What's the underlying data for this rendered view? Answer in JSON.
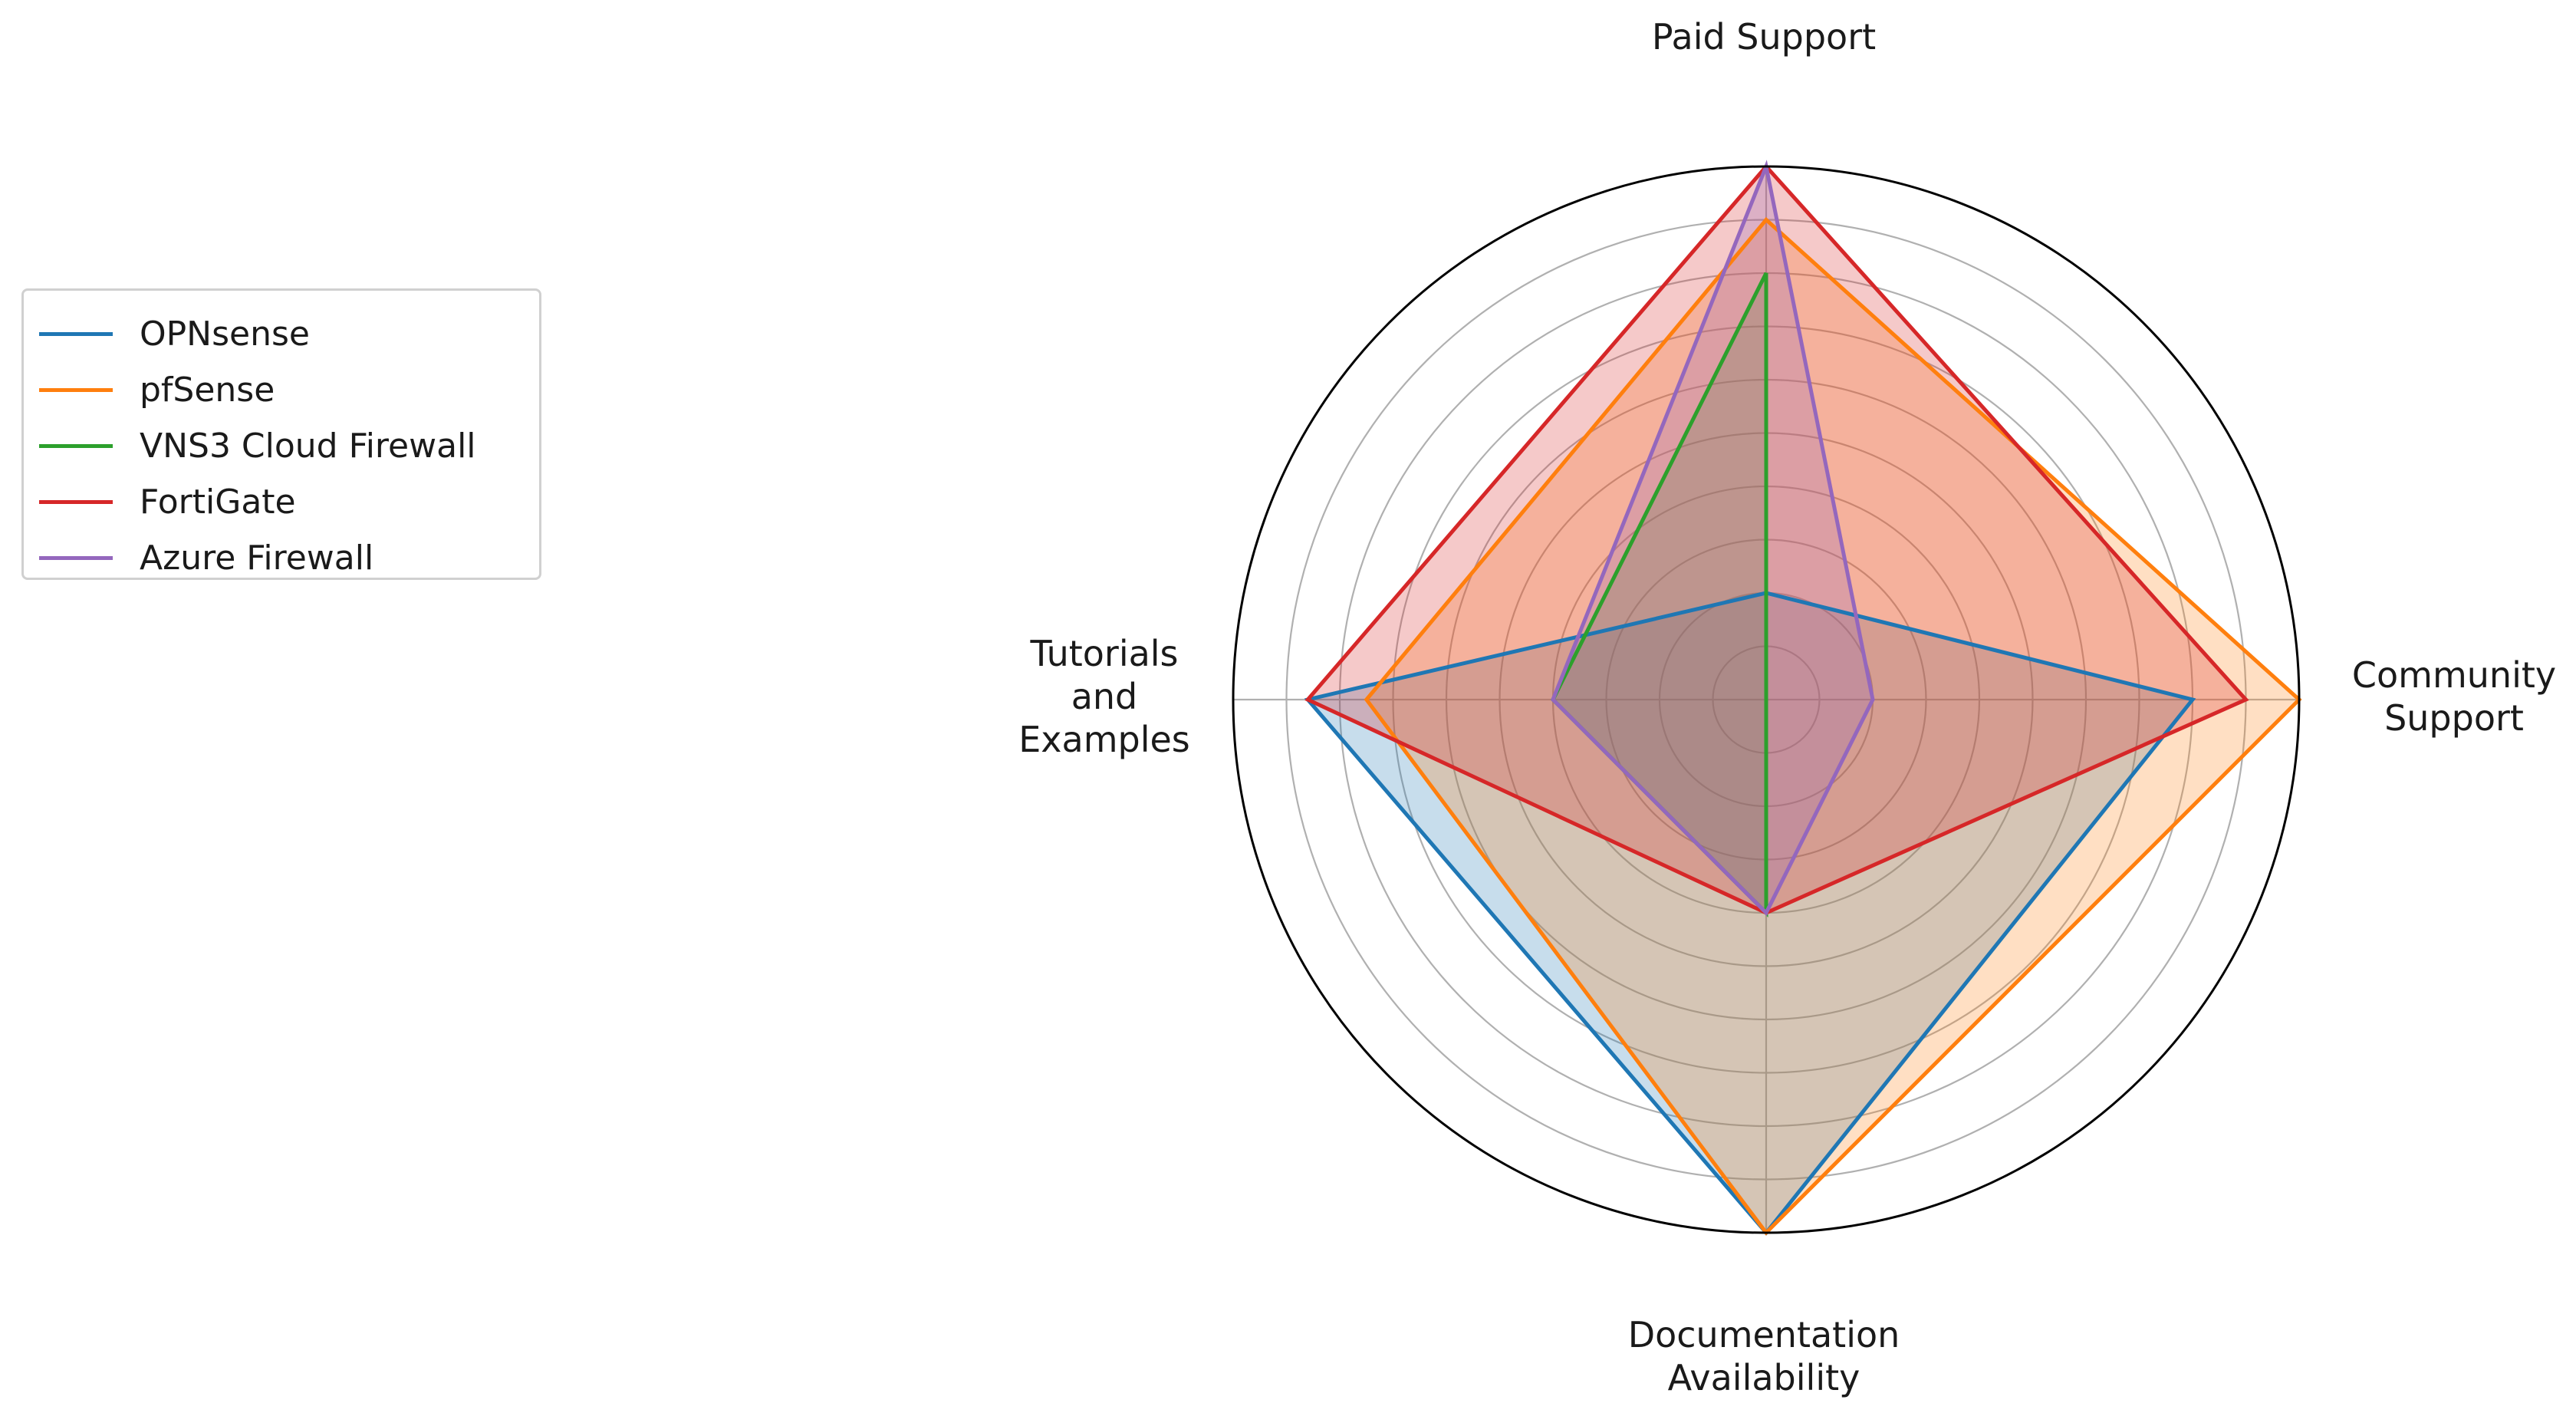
{
  "chart_data": {
    "type": "radar",
    "axes": [
      "Paid Support",
      "Community\nSupport",
      "Documentation\nAvailability",
      "Tutorials\nand\nExamples"
    ],
    "rlim": [
      0,
      10
    ],
    "grid": true,
    "legend_position": "left",
    "series": [
      {
        "name": "OPNsense",
        "color": "#1f77b4",
        "values": [
          2,
          8,
          10,
          8.6
        ]
      },
      {
        "name": "pfSense",
        "color": "#ff7f0e",
        "values": [
          9,
          10,
          10,
          7.5
        ]
      },
      {
        "name": "VNS3 Cloud Firewall",
        "color": "#2ca02c",
        "values": [
          8,
          0,
          4,
          4
        ]
      },
      {
        "name": "FortiGate",
        "color": "#d62728",
        "values": [
          10,
          9,
          4,
          8.6
        ]
      },
      {
        "name": "Azure Firewall",
        "color": "#9467bd",
        "values": [
          10,
          2,
          4,
          4
        ]
      }
    ]
  }
}
